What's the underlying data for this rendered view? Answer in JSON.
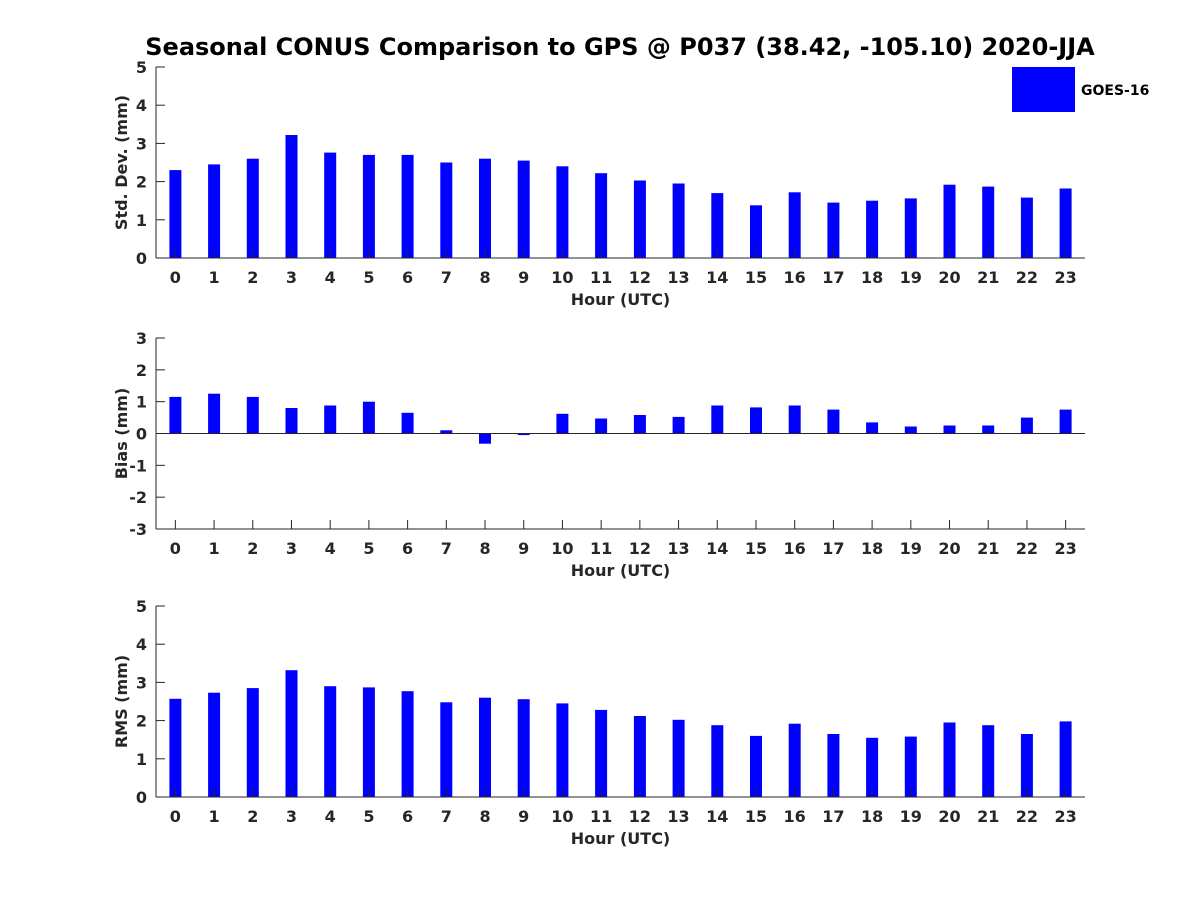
{
  "figure": {
    "title": "Seasonal CONUS Comparison to GPS @ P037 (38.42, -105.10) 2020-JJA",
    "legend": {
      "label": "GOES-16",
      "color": "#0000ff",
      "placement": "top-right"
    }
  },
  "chart_data": [
    {
      "type": "bar",
      "ylabel": "Std. Dev. (mm)",
      "xlabel": "Hour (UTC)",
      "ylim": [
        0,
        5
      ],
      "yticks": [
        0,
        1,
        2,
        3,
        4,
        5
      ],
      "categories": [
        "0",
        "1",
        "2",
        "3",
        "4",
        "5",
        "6",
        "7",
        "8",
        "9",
        "10",
        "11",
        "12",
        "13",
        "14",
        "15",
        "16",
        "17",
        "18",
        "19",
        "20",
        "21",
        "22",
        "23"
      ],
      "series": [
        {
          "name": "GOES-16",
          "color": "#0000ff",
          "values": [
            2.3,
            2.45,
            2.6,
            3.22,
            2.76,
            2.7,
            2.7,
            2.5,
            2.6,
            2.55,
            2.4,
            2.22,
            2.03,
            1.95,
            1.7,
            1.38,
            1.72,
            1.45,
            1.5,
            1.56,
            1.92,
            1.87,
            1.58,
            1.82
          ]
        }
      ]
    },
    {
      "type": "bar",
      "ylabel": "Bias (mm)",
      "xlabel": "Hour (UTC)",
      "ylim": [
        -3,
        3
      ],
      "yticks": [
        -3,
        -2,
        -1,
        0,
        1,
        2,
        3
      ],
      "categories": [
        "0",
        "1",
        "2",
        "3",
        "4",
        "5",
        "6",
        "7",
        "8",
        "9",
        "10",
        "11",
        "12",
        "13",
        "14",
        "15",
        "16",
        "17",
        "18",
        "19",
        "20",
        "21",
        "22",
        "23"
      ],
      "series": [
        {
          "name": "GOES-16",
          "color": "#0000ff",
          "values": [
            1.15,
            1.25,
            1.15,
            0.8,
            0.88,
            1.0,
            0.65,
            0.1,
            -0.32,
            -0.05,
            0.62,
            0.47,
            0.58,
            0.52,
            0.88,
            0.82,
            0.88,
            0.75,
            0.35,
            0.22,
            0.25,
            0.25,
            0.5,
            0.75
          ]
        }
      ]
    },
    {
      "type": "bar",
      "ylabel": "RMS (mm)",
      "xlabel": "Hour (UTC)",
      "ylim": [
        0,
        5
      ],
      "yticks": [
        0,
        1,
        2,
        3,
        4,
        5
      ],
      "categories": [
        "0",
        "1",
        "2",
        "3",
        "4",
        "5",
        "6",
        "7",
        "8",
        "9",
        "10",
        "11",
        "12",
        "13",
        "14",
        "15",
        "16",
        "17",
        "18",
        "19",
        "20",
        "21",
        "22",
        "23"
      ],
      "series": [
        {
          "name": "GOES-16",
          "color": "#0000ff",
          "values": [
            2.57,
            2.73,
            2.85,
            3.32,
            2.9,
            2.87,
            2.77,
            2.48,
            2.6,
            2.56,
            2.45,
            2.28,
            2.12,
            2.02,
            1.88,
            1.6,
            1.92,
            1.65,
            1.55,
            1.58,
            1.95,
            1.88,
            1.65,
            1.98
          ]
        }
      ]
    }
  ]
}
